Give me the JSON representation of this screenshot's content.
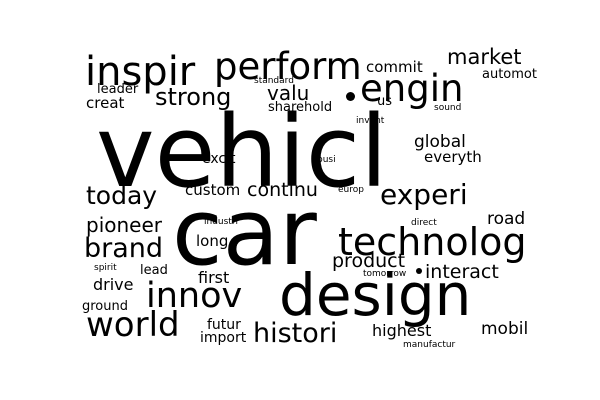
{
  "cloud": {
    "background": "#ffffff",
    "text_color": "#000000",
    "words": [
      {
        "key": "vehicl",
        "text": "vehicl"
      },
      {
        "key": "car",
        "text": "car"
      },
      {
        "key": "design",
        "text": "design"
      },
      {
        "key": "technolog",
        "text": "technolog"
      },
      {
        "key": "inspir",
        "text": "inspir"
      },
      {
        "key": "perform",
        "text": "perform"
      },
      {
        "key": "engin",
        "text": "engin"
      },
      {
        "key": "innov",
        "text": "innov"
      },
      {
        "key": "world",
        "text": "world"
      },
      {
        "key": "experi",
        "text": "experi"
      },
      {
        "key": "brand",
        "text": "brand"
      },
      {
        "key": "today",
        "text": "today"
      },
      {
        "key": "histori",
        "text": "histori"
      },
      {
        "key": "strong",
        "text": "strong"
      },
      {
        "key": "market",
        "text": "market"
      },
      {
        "key": "pioneer",
        "text": "pioneer"
      },
      {
        "key": "continu",
        "text": "continu"
      },
      {
        "key": "interact",
        "text": "interact"
      },
      {
        "key": "product",
        "text": "product"
      },
      {
        "key": "valu",
        "text": "valu"
      },
      {
        "key": "global",
        "text": "global"
      },
      {
        "key": "everyth",
        "text": "everyth"
      },
      {
        "key": "custom",
        "text": "custom"
      },
      {
        "key": "highest",
        "text": "highest"
      },
      {
        "key": "mobil",
        "text": "mobil"
      },
      {
        "key": "road",
        "text": "road"
      },
      {
        "key": "drive",
        "text": "drive"
      },
      {
        "key": "first",
        "text": "first"
      },
      {
        "key": "long",
        "text": "long"
      },
      {
        "key": "commit",
        "text": "commit"
      },
      {
        "key": "creat",
        "text": "creat"
      },
      {
        "key": "sharehold",
        "text": "sharehold"
      },
      {
        "key": "excit",
        "text": "excit"
      },
      {
        "key": "leader",
        "text": "leader"
      },
      {
        "key": "automot",
        "text": "automot"
      },
      {
        "key": "futur",
        "text": "futur"
      },
      {
        "key": "import",
        "text": "import"
      },
      {
        "key": "ground",
        "text": "ground"
      },
      {
        "key": "lead",
        "text": "lead"
      },
      {
        "key": "us",
        "text": "us"
      },
      {
        "key": "standard",
        "text": "standard"
      },
      {
        "key": "invent",
        "text": "invent"
      },
      {
        "key": "sound",
        "text": "sound"
      },
      {
        "key": "busi",
        "text": "busi"
      },
      {
        "key": "europ",
        "text": "europ"
      },
      {
        "key": "industri",
        "text": "industri"
      },
      {
        "key": "direct",
        "text": "direct"
      },
      {
        "key": "spirit",
        "text": "spirit"
      },
      {
        "key": "tomorrow",
        "text": "tomorrow"
      },
      {
        "key": "manufactur",
        "text": "manufactur"
      }
    ]
  }
}
